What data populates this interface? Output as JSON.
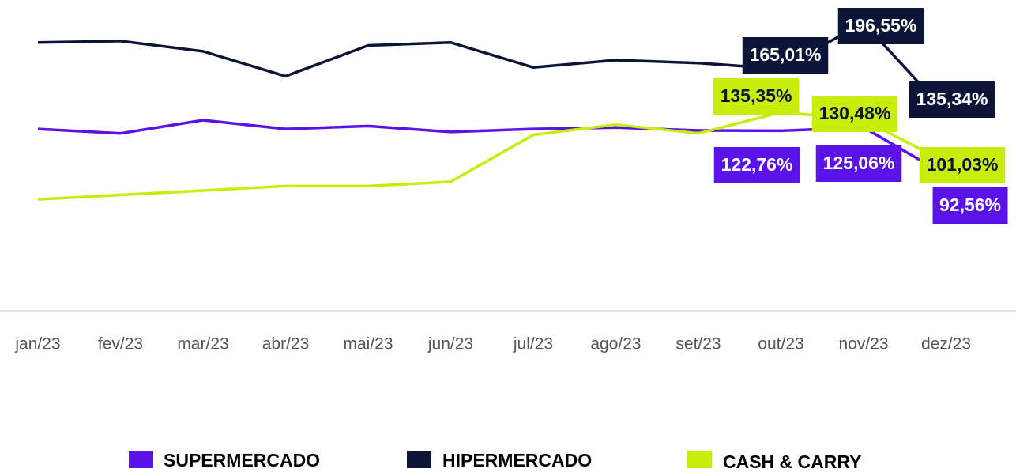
{
  "chart_data": {
    "type": "line",
    "categories": [
      "jan/23",
      "fev/23",
      "mar/23",
      "abr/23",
      "mai/23",
      "jun/23",
      "jul/23",
      "ago/23",
      "set/23",
      "out/23",
      "nov/23",
      "dez/23"
    ],
    "ylim": [
      0,
      212
    ],
    "series": [
      {
        "name": "SUPERMERCADO",
        "color": "#5a12e8",
        "values": [
          124,
          121,
          130,
          124,
          126,
          122,
          124,
          125,
          123,
          122.76,
          125.06,
          92.56
        ],
        "value_labels": [
          null,
          null,
          null,
          null,
          null,
          null,
          null,
          null,
          null,
          "122,76%",
          "125,06%",
          "92,56%"
        ]
      },
      {
        "name": "HIPERMERCADO",
        "color": "#0c1538",
        "values": [
          183,
          184,
          177,
          160,
          181,
          183,
          166,
          171,
          169,
          165.01,
          196.55,
          135.34
        ],
        "value_labels": [
          null,
          null,
          null,
          null,
          null,
          null,
          null,
          null,
          null,
          "165,01%",
          "196,55%",
          "135,34%"
        ]
      },
      {
        "name": "CASH & CARRY",
        "color": "#c8ec0c",
        "values": [
          76,
          79,
          82,
          85,
          85,
          88,
          120,
          127,
          121,
          135.35,
          130.48,
          101.03
        ],
        "value_labels": [
          null,
          null,
          null,
          null,
          null,
          null,
          null,
          null,
          null,
          "135,35%",
          "130,48%",
          "101,03%"
        ]
      }
    ]
  }
}
